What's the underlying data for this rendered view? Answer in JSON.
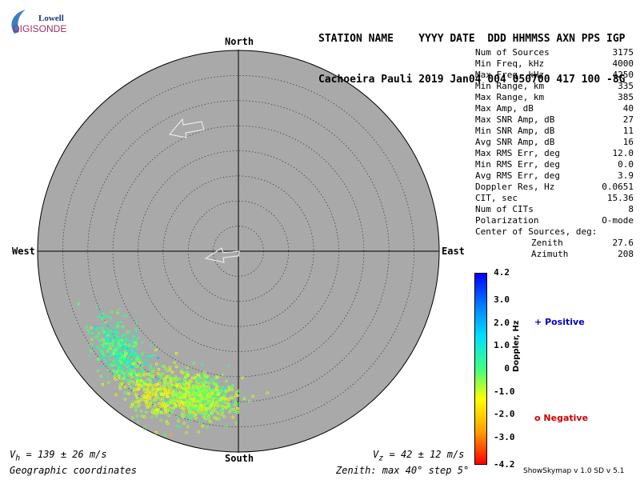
{
  "logo": {
    "top": "Lowell",
    "bottom": "DIGISONDE"
  },
  "header": {
    "line1": "STATION NAME    YYYY DATE  DDD HHMMSS AXN PPS IGP",
    "line2": "Cachoeira Pauli 2019 Jan04 004 050700 417 100 -8G"
  },
  "directions": {
    "north": "North",
    "south": "South",
    "west": "West",
    "east": "East"
  },
  "stats": [
    {
      "label": "Num of Sources",
      "value": "3175"
    },
    {
      "label": "Min Freq, kHz",
      "value": "4000"
    },
    {
      "label": "Max Freq, kHz",
      "value": "4250"
    },
    {
      "label": "Min Range, km",
      "value": "335"
    },
    {
      "label": "Max Range, km",
      "value": "385"
    },
    {
      "label": "Max Amp, dB",
      "value": "40"
    },
    {
      "label": "Max SNR Amp, dB",
      "value": "27"
    },
    {
      "label": "Min SNR Amp, dB",
      "value": "11"
    },
    {
      "label": "Avg SNR Amp, dB",
      "value": "16"
    },
    {
      "label": "Max RMS Err, deg",
      "value": "12.0"
    },
    {
      "label": "Min RMS Err, deg",
      "value": "0.0"
    },
    {
      "label": "Avg RMS Err, deg",
      "value": "3.9"
    },
    {
      "label": "Doppler Res, Hz",
      "value": "0.0651"
    },
    {
      "label": "CIT, sec",
      "value": "15.36"
    },
    {
      "label": "Num of CITs",
      "value": "8"
    },
    {
      "label": "Polarization",
      "value": "O-mode"
    },
    {
      "label": "Center of Sources, deg:",
      "value": ""
    },
    {
      "label": "Zenith",
      "value": "27.6",
      "indent": true
    },
    {
      "label": "Azimuth",
      "value": "208",
      "indent": true
    }
  ],
  "colorbar": {
    "title": "Doppler, Hz",
    "ticks": [
      "4.2",
      "3.0",
      "2.0",
      "1.0",
      "0",
      "-1.0",
      "-2.0",
      "-3.0",
      "-4.2"
    ],
    "positive_label": "Positive",
    "negative_label": "Negative",
    "colors": {
      "positive": "#0000c0",
      "negative": "#d00000"
    }
  },
  "footer": {
    "vh": "V",
    "vh_sub": "h",
    "vh_value": " = 139 ± 26 m/s",
    "vz": "V",
    "vz_sub": "z",
    "vz_value": " = 42 ± 12 m/s",
    "coords": "Geographic coordinates",
    "zenith_info": "Zenith: max 40°  step 5°",
    "version": "ShowSkymap v 1.0   SD v 5.1"
  },
  "chart_data": {
    "type": "scatter",
    "projection": "polar skymap",
    "zenith_max_deg": 40,
    "zenith_step_deg": 5,
    "num_sources": 3175,
    "doppler_range_hz": [
      -4.2,
      4.2
    ],
    "source_center": {
      "zenith_deg": 27.6,
      "azimuth_deg": 208
    },
    "vh_m_s": [
      139,
      26
    ],
    "vz_m_s": [
      42,
      12
    ],
    "clusters": [
      {
        "zenith_deg": 30,
        "azimuth_deg": 195,
        "spread_deg": 3.0,
        "doppler_hz": -0.6,
        "share": 0.45
      },
      {
        "zenith_deg": 33,
        "azimuth_deg": 210,
        "spread_deg": 3.5,
        "doppler_hz": -1.0,
        "share": 0.25
      },
      {
        "zenith_deg": 31,
        "azimuth_deg": 230,
        "spread_deg": 3.0,
        "doppler_hz": 0.3,
        "share": 0.3
      }
    ]
  }
}
